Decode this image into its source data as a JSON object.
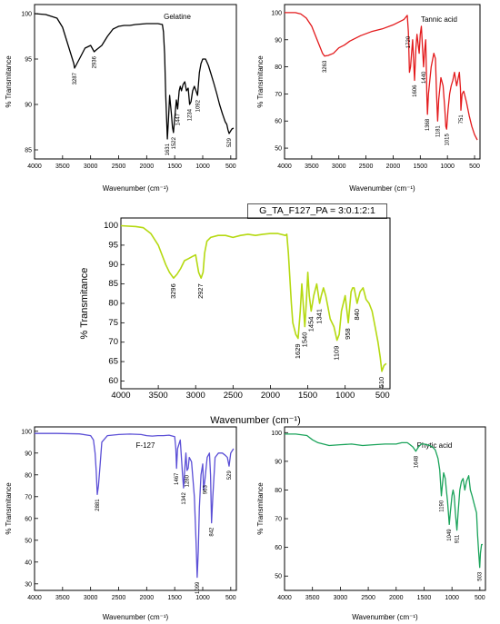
{
  "composition_label": "G_TA_F127_PA = 3:0.1:2:1",
  "chart_data": [
    {
      "type": "line",
      "title": "Gelatine",
      "xlabel": "Wavenumber (cm⁻¹)",
      "ylabel": "% Transmitance",
      "xlim": [
        4000,
        400
      ],
      "ylim": [
        84,
        101
      ],
      "xticks": [
        4000,
        3500,
        3000,
        2500,
        2000,
        1500,
        1000,
        500
      ],
      "yticks": [
        85,
        90,
        95,
        100
      ],
      "color": "#000000",
      "grid": false,
      "series": [
        {
          "x": [
            4000,
            3800,
            3600,
            3500,
            3400,
            3300,
            3287,
            3200,
            3100,
            3000,
            2936,
            2900,
            2800,
            2700,
            2600,
            2500,
            2400,
            2300,
            2200,
            2000,
            1800,
            1720,
            1700,
            1680,
            1660,
            1631,
            1610,
            1590,
            1560,
            1540,
            1522,
            1500,
            1470,
            1447,
            1420,
            1400,
            1380,
            1350,
            1320,
            1290,
            1260,
            1234,
            1210,
            1180,
            1150,
            1120,
            1092,
            1060,
            1030,
            1000,
            950,
            900,
            850,
            800,
            750,
            700,
            650,
            600,
            570,
            550,
            529,
            510,
            480,
            450
          ],
          "y": [
            100,
            99.9,
            99.5,
            98.5,
            96.5,
            94.5,
            94,
            95,
            96.2,
            96.5,
            95.8,
            96,
            96.5,
            97.5,
            98.3,
            98.6,
            98.7,
            98.7,
            98.8,
            98.9,
            98.9,
            98.8,
            98,
            95.5,
            91,
            86.2,
            88.5,
            91,
            89,
            87.5,
            86.9,
            88.5,
            90.5,
            89.5,
            91.5,
            92,
            91.5,
            92.2,
            92.5,
            91.5,
            91.8,
            90,
            90.3,
            91.5,
            92,
            91.5,
            91,
            93.5,
            94.5,
            95,
            95,
            94.3,
            93.3,
            92.3,
            91.2,
            90,
            89,
            88.1,
            87.8,
            87.2,
            86.8,
            87,
            87.3,
            87.4
          ]
        }
      ],
      "annotations": [
        {
          "x": 3287,
          "text": "3287"
        },
        {
          "x": 2936,
          "text": "2936"
        },
        {
          "x": 1631,
          "text": "1631"
        },
        {
          "x": 1522,
          "text": "1522"
        },
        {
          "x": 1447,
          "text": "1447"
        },
        {
          "x": 1234,
          "text": "1234"
        },
        {
          "x": 1092,
          "text": "1092"
        },
        {
          "x": 529,
          "text": "529"
        }
      ]
    },
    {
      "type": "line",
      "title": "Tannic acid",
      "xlabel": "Wavenumber (cm⁻¹)",
      "ylabel": "% Transmitance",
      "xlim": [
        4000,
        400
      ],
      "ylim": [
        46,
        103
      ],
      "xticks": [
        4000,
        3500,
        3000,
        2500,
        2000,
        1500,
        1000,
        500
      ],
      "yticks": [
        50,
        60,
        70,
        80,
        90,
        100
      ],
      "color": "#e31a1c",
      "grid": false,
      "series": [
        {
          "x": [
            4000,
            3800,
            3700,
            3600,
            3500,
            3400,
            3300,
            3263,
            3200,
            3100,
            3000,
            2900,
            2800,
            2600,
            2400,
            2200,
            2000,
            1900,
            1800,
            1760,
            1740,
            1720,
            1700,
            1680,
            1640,
            1606,
            1580,
            1560,
            1520,
            1500,
            1480,
            1440,
            1420,
            1400,
            1380,
            1368,
            1350,
            1300,
            1250,
            1220,
            1200,
            1181,
            1160,
            1120,
            1080,
            1050,
            1030,
            1015,
            990,
            960,
            930,
            900,
            870,
            830,
            800,
            780,
            760,
            751,
            730,
            700,
            650,
            600,
            550,
            500,
            450
          ],
          "y": [
            100,
            100,
            99.5,
            98,
            95,
            90,
            85,
            84,
            84.2,
            85,
            87,
            88,
            89.5,
            91.5,
            93,
            94,
            95.5,
            96.5,
            97.5,
            98.5,
            99,
            93,
            78,
            80,
            90,
            75,
            87,
            92,
            85,
            92,
            95,
            80,
            86,
            90,
            70,
            62.5,
            70,
            80,
            85,
            83,
            70,
            60,
            68,
            76,
            73,
            65,
            58,
            57,
            64,
            70,
            73,
            75,
            78,
            73,
            76,
            78,
            72,
            64,
            70,
            71,
            67,
            62,
            58,
            55,
            53
          ]
        }
      ],
      "annotations": [
        {
          "x": 3263,
          "text": "3263"
        },
        {
          "x": 1720,
          "text": "1720"
        },
        {
          "x": 1606,
          "text": "1606"
        },
        {
          "x": 1440,
          "text": "1440"
        },
        {
          "x": 1368,
          "text": "1368"
        },
        {
          "x": 1181,
          "text": "1181"
        },
        {
          "x": 1015,
          "text": "1015"
        },
        {
          "x": 751,
          "text": "751"
        }
      ]
    },
    {
      "type": "line",
      "title": "",
      "xlabel": "Wavenumber (cm⁻¹)",
      "ylabel": "% Transmitance",
      "xlim": [
        4000,
        400
      ],
      "ylim": [
        58,
        102
      ],
      "xticks": [
        4000,
        3500,
        3000,
        2500,
        2000,
        1500,
        1000,
        500
      ],
      "yticks": [
        60,
        65,
        70,
        75,
        80,
        85,
        90,
        95,
        100
      ],
      "color": "#b5d911",
      "grid": false,
      "series": [
        {
          "x": [
            4000,
            3800,
            3700,
            3600,
            3500,
            3400,
            3350,
            3296,
            3250,
            3200,
            3150,
            3100,
            3050,
            3000,
            2960,
            2927,
            2900,
            2880,
            2850,
            2800,
            2700,
            2600,
            2500,
            2400,
            2300,
            2200,
            2100,
            2000,
            1900,
            1800,
            1780,
            1760,
            1720,
            1700,
            1660,
            1629,
            1600,
            1580,
            1540,
            1520,
            1500,
            1480,
            1454,
            1420,
            1380,
            1341,
            1320,
            1290,
            1260,
            1230,
            1200,
            1150,
            1109,
            1080,
            1050,
            1000,
            958,
            920,
            900,
            880,
            840,
            800,
            760,
            720,
            680,
            640,
            600,
            560,
            530,
            510,
            480,
            450
          ],
          "y": [
            100,
            99.8,
            99.5,
            98,
            95,
            90,
            88,
            86.5,
            87.5,
            89,
            91,
            91.5,
            92,
            92.5,
            88,
            86.5,
            88,
            93,
            96,
            97,
            97.5,
            97.5,
            97,
            97.5,
            97.8,
            97.5,
            97.8,
            98,
            98,
            97.5,
            97.8,
            93,
            80,
            75,
            72,
            71,
            78,
            85,
            74,
            80,
            88,
            82,
            78,
            82,
            85,
            80,
            82,
            84,
            82,
            79,
            76,
            74,
            70.5,
            72,
            78,
            82,
            75,
            83,
            84,
            84,
            80,
            83,
            84,
            81,
            80,
            78,
            74,
            70,
            66,
            62.5,
            64,
            64.5
          ]
        }
      ],
      "annotations": [
        {
          "x": 3296,
          "text": "3296"
        },
        {
          "x": 2927,
          "text": "2927"
        },
        {
          "x": 1629,
          "text": "1629"
        },
        {
          "x": 1540,
          "text": "1540"
        },
        {
          "x": 1454,
          "text": "1454"
        },
        {
          "x": 1341,
          "text": "1341"
        },
        {
          "x": 1109,
          "text": "1109"
        },
        {
          "x": 958,
          "text": "958"
        },
        {
          "x": 840,
          "text": "840"
        },
        {
          "x": 510,
          "text": "510"
        }
      ]
    },
    {
      "type": "line",
      "title": "F-127",
      "xlabel": "Wavenumber (cm⁻¹)",
      "ylabel": "% Transmitance",
      "xlim": [
        4000,
        400
      ],
      "ylim": [
        27,
        102
      ],
      "xticks": [
        4000,
        3500,
        3000,
        2500,
        2000,
        1500,
        1000,
        500
      ],
      "yticks": [
        30,
        40,
        50,
        60,
        70,
        80,
        90,
        100
      ],
      "color": "#5b4fd6",
      "grid": false,
      "series": [
        {
          "x": [
            4000,
            3600,
            3200,
            3000,
            2950,
            2920,
            2900,
            2881,
            2860,
            2830,
            2800,
            2700,
            2500,
            2300,
            2100,
            2000,
            1900,
            1800,
            1700,
            1600,
            1500,
            1480,
            1467,
            1450,
            1400,
            1360,
            1342,
            1320,
            1300,
            1280,
            1260,
            1240,
            1200,
            1150,
            1120,
            1099,
            1080,
            1060,
            1030,
            1000,
            983,
            960,
            920,
            880,
            860,
            842,
            820,
            780,
            720,
            650,
            600,
            560,
            529,
            500,
            450
          ],
          "y": [
            99,
            99,
            98.8,
            98,
            96,
            90,
            82,
            71,
            75,
            85,
            95,
            98,
            98.5,
            98.7,
            98.5,
            98,
            97.8,
            98,
            98,
            98.2,
            97.5,
            92,
            83,
            92,
            96,
            80,
            74,
            83,
            90,
            82,
            83,
            88,
            86,
            70,
            50,
            33,
            45,
            65,
            80,
            85,
            73,
            78,
            88,
            90,
            80,
            58,
            70,
            88,
            90,
            90,
            89,
            88,
            84,
            90,
            92
          ]
        }
      ],
      "annotations": [
        {
          "x": 2881,
          "text": "2881"
        },
        {
          "x": 1467,
          "text": "1467"
        },
        {
          "x": 1342,
          "text": "1342"
        },
        {
          "x": 1280,
          "text": "1280"
        },
        {
          "x": 1099,
          "text": "1099"
        },
        {
          "x": 963,
          "text": "963"
        },
        {
          "x": 842,
          "text": "842"
        },
        {
          "x": 529,
          "text": "529"
        }
      ]
    },
    {
      "type": "line",
      "title": "Phytic acid",
      "xlabel": "Wavenumber (cm⁻¹)",
      "ylabel": "% Transmitance",
      "xlim": [
        4000,
        400
      ],
      "ylim": [
        45,
        102
      ],
      "xticks": [
        4000,
        3500,
        3000,
        2500,
        2000,
        1500,
        1000,
        500
      ],
      "yticks": [
        50,
        60,
        70,
        80,
        90,
        100
      ],
      "color": "#1aa35a",
      "grid": false,
      "series": [
        {
          "x": [
            4000,
            3800,
            3600,
            3500,
            3400,
            3200,
            3000,
            2800,
            2600,
            2400,
            2200,
            2000,
            1900,
            1800,
            1750,
            1700,
            1648,
            1600,
            1550,
            1500,
            1450,
            1400,
            1350,
            1300,
            1250,
            1220,
            1190,
            1170,
            1150,
            1120,
            1100,
            1080,
            1049,
            1030,
            1000,
            980,
            960,
            940,
            911,
            890,
            860,
            830,
            800,
            770,
            740,
            700,
            670,
            640,
            600,
            560,
            540,
            520,
            503,
            490,
            470,
            450
          ],
          "y": [
            99.5,
            99.5,
            99,
            97.5,
            96.5,
            95.5,
            95.8,
            96,
            95.5,
            95.8,
            96,
            96,
            96.5,
            96.5,
            95.8,
            95,
            93.5,
            95,
            96,
            96,
            95.8,
            95.5,
            95,
            94,
            91,
            87,
            78,
            82,
            86,
            84,
            80,
            76,
            68,
            72,
            78,
            80,
            78,
            72,
            66,
            72,
            80,
            83,
            84,
            80,
            83,
            85,
            80,
            78,
            75,
            72,
            64,
            58,
            53,
            58,
            61,
            61
          ]
        }
      ],
      "annotations": [
        {
          "x": 1648,
          "text": "1648"
        },
        {
          "x": 1190,
          "text": "1190"
        },
        {
          "x": 1049,
          "text": "1049"
        },
        {
          "x": 911,
          "text": "911"
        },
        {
          "x": 503,
          "text": "503"
        }
      ]
    }
  ]
}
